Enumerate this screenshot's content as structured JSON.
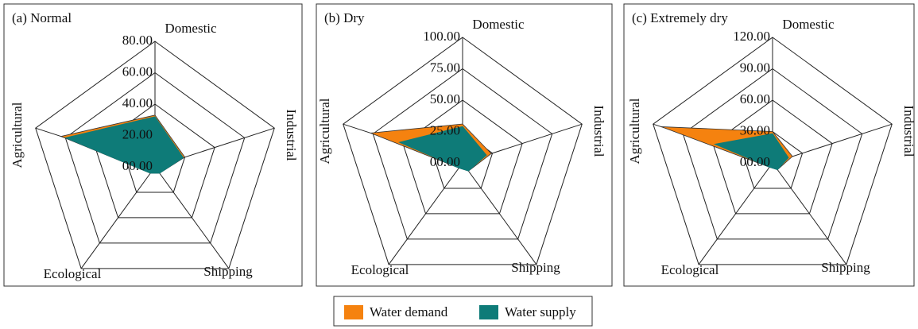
{
  "chart_data": [
    {
      "type": "radar",
      "title": "(a) Normal",
      "categories": [
        "Domestic",
        "Industrial",
        "Shipping",
        "Ecological",
        "Agricultural"
      ],
      "series": [
        {
          "name": "Water demand",
          "color": "#f5820f",
          "values": [
            33,
            20,
            5,
            5,
            63
          ]
        },
        {
          "name": "Water supply",
          "color": "#0e7b78",
          "values": [
            32,
            19,
            5,
            5,
            60
          ]
        }
      ],
      "rlim": [
        0,
        80
      ],
      "rticks": [
        {
          "value": 0,
          "label": "00.00"
        },
        {
          "value": 20,
          "label": "20.00"
        },
        {
          "value": 40,
          "label": "40.00"
        },
        {
          "value": 60,
          "label": "60.00"
        },
        {
          "value": 80,
          "label": "80.00"
        }
      ]
    },
    {
      "type": "radar",
      "title": "(b) Dry",
      "categories": [
        "Domestic",
        "Industrial",
        "Shipping",
        "Ecological",
        "Agricultural"
      ],
      "series": [
        {
          "name": "Water demand",
          "color": "#f5820f",
          "values": [
            31,
            24,
            8,
            5,
            77
          ]
        },
        {
          "name": "Water supply",
          "color": "#0e7b78",
          "values": [
            29,
            20,
            8,
            5,
            53
          ]
        }
      ],
      "rlim": [
        0,
        100
      ],
      "rticks": [
        {
          "value": 0,
          "label": "00.00"
        },
        {
          "value": 25,
          "label": "25.00"
        },
        {
          "value": 50,
          "label": "50.00"
        },
        {
          "value": 75,
          "label": "75.00"
        },
        {
          "value": 100,
          "label": "100.00"
        }
      ]
    },
    {
      "type": "radar",
      "title": "(c) Extremely dry",
      "categories": [
        "Domestic",
        "Industrial",
        "Shipping",
        "Ecological",
        "Agricultural"
      ],
      "series": [
        {
          "name": "Water demand",
          "color": "#f5820f",
          "values": [
            30,
            20,
            8,
            5,
            112
          ]
        },
        {
          "name": "Water supply",
          "color": "#0e7b78",
          "values": [
            28,
            16,
            8,
            5,
            58
          ]
        }
      ],
      "rlim": [
        0,
        120
      ],
      "rticks": [
        {
          "value": 0,
          "label": "00.00"
        },
        {
          "value": 30,
          "label": "30.00"
        },
        {
          "value": 60,
          "label": "60.00"
        },
        {
          "value": 90,
          "label": "90.00"
        },
        {
          "value": 120,
          "label": "120.00"
        }
      ]
    }
  ]
}
